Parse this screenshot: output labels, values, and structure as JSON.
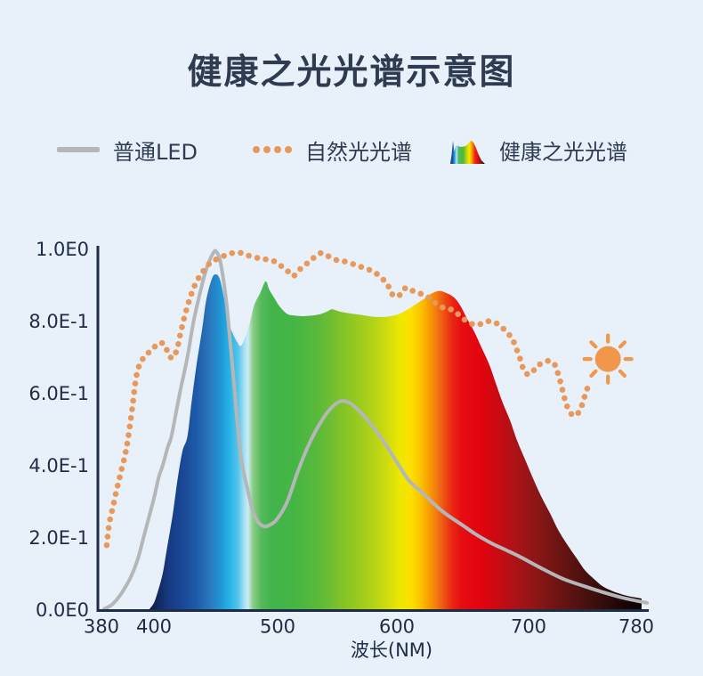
{
  "title": "健康之光光谱示意图",
  "colors": {
    "background": "#e8f1f9",
    "text": "#2f3b50",
    "axis": "#1f2c45",
    "led_line": "#b4b6b8",
    "natural_dots": "#e5995c",
    "sun": "#f0974b"
  },
  "legend": [
    {
      "label": "普通LED",
      "swatch": "gray-line"
    },
    {
      "label": "自然光光谱",
      "swatch": "orange-dots"
    },
    {
      "label": "健康之光光谱",
      "swatch": "spectrum-icon"
    }
  ],
  "chart_data": {
    "type": "area",
    "title": "健康之光光谱示意图",
    "xlabel": "波长(NM)",
    "ylabel": "",
    "x_ticks": [
      380,
      400,
      500,
      600,
      700,
      780
    ],
    "y_ticks": [
      "1.0E0",
      "8.0E-1",
      "6.0E-1",
      "4.0E-1",
      "2.0E-1",
      "0.0E0"
    ],
    "y_tick_values": [
      1.0,
      0.8,
      0.6,
      0.4,
      0.2,
      0.0
    ],
    "xlim": [
      380,
      780
    ],
    "ylim": [
      0,
      1
    ],
    "grid": false,
    "legend_position": "top",
    "sun": {
      "wavelength": 759,
      "value": 0.696
    },
    "spectrum_colors": [
      [
        397,
        "#0b123a"
      ],
      [
        404,
        "#132962"
      ],
      [
        412,
        "#173a84"
      ],
      [
        423,
        "#1a4796"
      ],
      [
        434,
        "#1d5aa9"
      ],
      [
        445,
        "#2b77bc"
      ],
      [
        453,
        "#1f93d3"
      ],
      [
        461,
        "#27b2e6"
      ],
      [
        468,
        "#55c5ec"
      ],
      [
        473,
        "#a5dff3"
      ],
      [
        476,
        "#cdecf6"
      ],
      [
        480,
        "#8ccd86"
      ],
      [
        487,
        "#55b95c"
      ],
      [
        495,
        "#42b44c"
      ],
      [
        513,
        "#44b545"
      ],
      [
        535,
        "#5cb93a"
      ],
      [
        556,
        "#85c426"
      ],
      [
        577,
        "#abd01a"
      ],
      [
        592,
        "#cfdc0e"
      ],
      [
        603,
        "#efe800"
      ],
      [
        611,
        "#fcdf00"
      ],
      [
        618,
        "#fbc300"
      ],
      [
        624,
        "#f7a000"
      ],
      [
        630,
        "#f37b10"
      ],
      [
        636,
        "#ee4f14"
      ],
      [
        642,
        "#e92613"
      ],
      [
        649,
        "#e60d12"
      ],
      [
        663,
        "#e3040f"
      ],
      [
        676,
        "#cb0a12"
      ],
      [
        689,
        "#ad1216"
      ],
      [
        703,
        "#921617"
      ],
      [
        717,
        "#761514"
      ],
      [
        734,
        "#571211"
      ],
      [
        749,
        "#3c0f0d"
      ],
      [
        764,
        "#240908"
      ],
      [
        777,
        "#120404"
      ],
      [
        785,
        "#0d0303"
      ]
    ],
    "series": [
      {
        "name": "普通LED",
        "type": "line",
        "color": "#b4b6b8",
        "points": [
          [
            381,
            0.003
          ],
          [
            384,
            0.015
          ],
          [
            387,
            0.04
          ],
          [
            390,
            0.075
          ],
          [
            392,
            0.105
          ],
          [
            394,
            0.145
          ],
          [
            396,
            0.2
          ],
          [
            398,
            0.255
          ],
          [
            400,
            0.31
          ],
          [
            404,
            0.37
          ],
          [
            407,
            0.4
          ],
          [
            411,
            0.45
          ],
          [
            414,
            0.48
          ],
          [
            418,
            0.55
          ],
          [
            422,
            0.62
          ],
          [
            427,
            0.7
          ],
          [
            432,
            0.8
          ],
          [
            437,
            0.875
          ],
          [
            441,
            0.93
          ],
          [
            445,
            0.97
          ],
          [
            448,
            0.99
          ],
          [
            450,
            0.995
          ],
          [
            453,
            0.975
          ],
          [
            456,
            0.92
          ],
          [
            459,
            0.84
          ],
          [
            462,
            0.73
          ],
          [
            465,
            0.615
          ],
          [
            468,
            0.5
          ],
          [
            471,
            0.41
          ],
          [
            476,
            0.33
          ],
          [
            480,
            0.275
          ],
          [
            484,
            0.245
          ],
          [
            489,
            0.232
          ],
          [
            493,
            0.235
          ],
          [
            499,
            0.25
          ],
          [
            508,
            0.3
          ],
          [
            517,
            0.385
          ],
          [
            527,
            0.465
          ],
          [
            536,
            0.52
          ],
          [
            544,
            0.557
          ],
          [
            552,
            0.578
          ],
          [
            560,
            0.575
          ],
          [
            569,
            0.55
          ],
          [
            580,
            0.508
          ],
          [
            590,
            0.462
          ],
          [
            600,
            0.41
          ],
          [
            609,
            0.36
          ],
          [
            618,
            0.33
          ],
          [
            628,
            0.295
          ],
          [
            637,
            0.267
          ],
          [
            648,
            0.24
          ],
          [
            660,
            0.21
          ],
          [
            672,
            0.185
          ],
          [
            682,
            0.168
          ],
          [
            695,
            0.145
          ],
          [
            710,
            0.115
          ],
          [
            726,
            0.086
          ],
          [
            740,
            0.068
          ],
          [
            755,
            0.05
          ],
          [
            770,
            0.034
          ],
          [
            788,
            0.02
          ]
        ]
      },
      {
        "name": "自然光光谱",
        "type": "dotted-line",
        "color": "#e8985a",
        "points": [
          [
            382,
            0.18
          ],
          [
            383,
            0.24
          ],
          [
            384.5,
            0.29
          ],
          [
            386,
            0.34
          ],
          [
            387.5,
            0.385
          ],
          [
            389,
            0.43
          ],
          [
            390,
            0.47
          ],
          [
            391,
            0.52
          ],
          [
            392,
            0.575
          ],
          [
            392.8,
            0.625
          ],
          [
            393.8,
            0.665
          ],
          [
            395,
            0.688
          ],
          [
            396.5,
            0.703
          ],
          [
            398,
            0.714
          ],
          [
            400,
            0.728
          ],
          [
            404,
            0.74
          ],
          [
            408.5,
            0.736
          ],
          [
            412,
            0.707
          ],
          [
            415.5,
            0.7
          ],
          [
            419,
            0.728
          ],
          [
            421.5,
            0.768
          ],
          [
            426,
            0.83
          ],
          [
            431.5,
            0.888
          ],
          [
            436.5,
            0.923
          ],
          [
            441,
            0.945
          ],
          [
            446,
            0.964
          ],
          [
            452,
            0.975
          ],
          [
            458,
            0.984
          ],
          [
            464,
            0.99
          ],
          [
            471,
            0.99
          ],
          [
            478,
            0.981
          ],
          [
            485.5,
            0.975
          ],
          [
            491,
            0.972
          ],
          [
            496,
            0.969
          ],
          [
            502,
            0.956
          ],
          [
            508,
            0.941
          ],
          [
            513,
            0.926
          ],
          [
            519,
            0.946
          ],
          [
            525,
            0.962
          ],
          [
            530,
            0.976
          ],
          [
            534,
            0.986
          ],
          [
            537,
            0.99
          ],
          [
            541,
            0.984
          ],
          [
            545,
            0.976
          ],
          [
            550,
            0.97
          ],
          [
            554,
            0.968
          ],
          [
            558,
            0.965
          ],
          [
            566,
            0.956
          ],
          [
            573,
            0.948
          ],
          [
            581,
            0.937
          ],
          [
            588,
            0.918
          ],
          [
            592.5,
            0.9
          ],
          [
            596,
            0.876
          ],
          [
            600,
            0.869
          ],
          [
            603.5,
            0.878
          ],
          [
            607,
            0.894
          ],
          [
            611.5,
            0.886
          ],
          [
            616.5,
            0.879
          ],
          [
            621,
            0.873
          ],
          [
            626,
            0.862
          ],
          [
            630,
            0.849
          ],
          [
            636,
            0.837
          ],
          [
            643,
            0.831
          ],
          [
            648,
            0.815
          ],
          [
            653.5,
            0.8
          ],
          [
            660,
            0.79
          ],
          [
            666,
            0.797
          ],
          [
            671,
            0.801
          ],
          [
            677,
            0.792
          ],
          [
            683,
            0.772
          ],
          [
            687.5,
            0.752
          ],
          [
            691,
            0.722
          ],
          [
            694,
            0.692
          ],
          [
            696.5,
            0.664
          ],
          [
            700,
            0.653
          ],
          [
            703.5,
            0.663
          ],
          [
            706,
            0.676
          ],
          [
            710,
            0.684
          ],
          [
            715,
            0.691
          ],
          [
            719,
            0.683
          ],
          [
            721.5,
            0.66
          ],
          [
            724,
            0.628
          ],
          [
            726.5,
            0.59
          ],
          [
            728.5,
            0.566
          ],
          [
            731.5,
            0.545
          ],
          [
            734.5,
            0.539
          ],
          [
            738,
            0.553
          ],
          [
            740.5,
            0.578
          ],
          [
            742.5,
            0.603
          ],
          [
            744.5,
            0.622
          ],
          [
            746,
            0.636
          ]
        ]
      },
      {
        "name": "健康之光光谱",
        "type": "area-spectrum",
        "points": [
          [
            398,
            0
          ],
          [
            400,
            0.02
          ],
          [
            403,
            0.05
          ],
          [
            407,
            0.1
          ],
          [
            410,
            0.16
          ],
          [
            413,
            0.22
          ],
          [
            415,
            0.26
          ],
          [
            417,
            0.31
          ],
          [
            419,
            0.36
          ],
          [
            423,
            0.44
          ],
          [
            427,
            0.48
          ],
          [
            430,
            0.565
          ],
          [
            434,
            0.67
          ],
          [
            439,
            0.78
          ],
          [
            442,
            0.855
          ],
          [
            446,
            0.91
          ],
          [
            449,
            0.93
          ],
          [
            453,
            0.92
          ],
          [
            457,
            0.86
          ],
          [
            460,
            0.8
          ],
          [
            464,
            0.765
          ],
          [
            467,
            0.745
          ],
          [
            470,
            0.732
          ],
          [
            473,
            0.75
          ],
          [
            477,
            0.79
          ],
          [
            481,
            0.845
          ],
          [
            486,
            0.88
          ],
          [
            489,
            0.905
          ],
          [
            491,
            0.91
          ],
          [
            493,
            0.89
          ],
          [
            497,
            0.867
          ],
          [
            502,
            0.84
          ],
          [
            508,
            0.821
          ],
          [
            513,
            0.817
          ],
          [
            523,
            0.815
          ],
          [
            534,
            0.819
          ],
          [
            541,
            0.827
          ],
          [
            545,
            0.834
          ],
          [
            548,
            0.832
          ],
          [
            553,
            0.827
          ],
          [
            560,
            0.823
          ],
          [
            571,
            0.818
          ],
          [
            581,
            0.813
          ],
          [
            590,
            0.813
          ],
          [
            595,
            0.815
          ],
          [
            601,
            0.82
          ],
          [
            607,
            0.831
          ],
          [
            614,
            0.847
          ],
          [
            621,
            0.864
          ],
          [
            626,
            0.877
          ],
          [
            632,
            0.885
          ],
          [
            637,
            0.88
          ],
          [
            643,
            0.868
          ],
          [
            648,
            0.845
          ],
          [
            653,
            0.81
          ],
          [
            659,
            0.77
          ],
          [
            664,
            0.73
          ],
          [
            670,
            0.682
          ],
          [
            675,
            0.63
          ],
          [
            680,
            0.578
          ],
          [
            686,
            0.525
          ],
          [
            691,
            0.472
          ],
          [
            697,
            0.42
          ],
          [
            703,
            0.368
          ],
          [
            709,
            0.318
          ],
          [
            716,
            0.268
          ],
          [
            722,
            0.222
          ],
          [
            729,
            0.18
          ],
          [
            736,
            0.142
          ],
          [
            742,
            0.11
          ],
          [
            749,
            0.085
          ],
          [
            755,
            0.066
          ],
          [
            762,
            0.053
          ],
          [
            769,
            0.044
          ],
          [
            775,
            0.038
          ],
          [
            781,
            0.034
          ],
          [
            784,
            0.032
          ]
        ]
      }
    ]
  }
}
